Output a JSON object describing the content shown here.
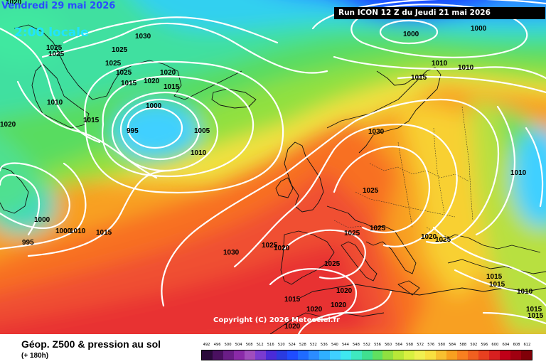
{
  "header": {
    "valid_date": "Vendredi 29 mai 2026",
    "local_time": "2:00 locale",
    "run_info": "Run ICON 12 Z du Jeudi 21 mai 2026"
  },
  "copyright": "Copyright (C) 2026 Meteociel.fr",
  "footer": {
    "title": "Géop. Z500 & pression au sol",
    "subtitle": "(+ 180h)"
  },
  "legend": {
    "labels": [
      "492",
      "496",
      "500",
      "504",
      "508",
      "512",
      "516",
      "520",
      "524",
      "528",
      "532",
      "536",
      "540",
      "544",
      "548",
      "552",
      "556",
      "560",
      "564",
      "568",
      "572",
      "576",
      "580",
      "584",
      "588",
      "592",
      "596",
      "600",
      "604",
      "608",
      "612"
    ],
    "colors": [
      "#2a0a3a",
      "#4a1060",
      "#6a1d87",
      "#8a2aa8",
      "#a04dbd",
      "#7a3bd0",
      "#4a2bd8",
      "#2a3be0",
      "#1f4cff",
      "#1f6bff",
      "#2b8cff",
      "#2fb0ff",
      "#3fd0ff",
      "#3fe8f0",
      "#3fe8c0",
      "#40e090",
      "#60e060",
      "#90e040",
      "#b8e838",
      "#d8f040",
      "#f0f050",
      "#f8e040",
      "#f8c030",
      "#f8a020",
      "#f88020",
      "#f06020",
      "#e84020",
      "#d82020",
      "#c00018",
      "#a00010",
      "#800008"
    ]
  },
  "pressure_labels": {
    "l1000_ne": "1000",
    "l1000_ne2": "1000",
    "l1010_ne": "1010",
    "l1010_ne2": "1010",
    "l1015_ne": "1015",
    "l1030_gr": "1030",
    "l1025_gr": "1025",
    "l1025_gr2": "1025",
    "l1020_gr": "1020",
    "l1025_gr3": "1025",
    "l1025_gr4": "1025",
    "l1020_gr2": "1020",
    "l1010_gr": "1010",
    "l1015_gr": "1015",
    "l1015_gr2": "1015",
    "l1020_w": "1020",
    "l1020_top": "1020",
    "l1000_low": "1000",
    "l995_low": "995",
    "l1005_low": "1005",
    "l1010_low": "1010",
    "l1020_low": "1020",
    "l1000_sw": "1000",
    "l995_sw": "995",
    "l1000_sw2": "1000",
    "l1010_sw": "1010",
    "l1015_sw": "1015",
    "l1030_c": "1030",
    "l1030_uk": "1030",
    "l1025_fr": "1025",
    "l1025_fr2": "1025",
    "l1025_alp": "1025",
    "l1020_sp": "1020",
    "l1025_sp": "1025",
    "l1025_sp2": "1025",
    "l1015_med": "1015",
    "l1020_med": "1020",
    "l1020_med2": "1020",
    "l1020_med3": "1020",
    "l1020_af": "1020",
    "l1015_af": "1015",
    "l1020_ita": "1020",
    "l1025_ita": "1025",
    "l1010_e": "1010",
    "l1015_e": "1015",
    "l1015_e2": "1015",
    "l1010_e2": "1010",
    "l1015_e3": "1015",
    "l1015_e4": "1015"
  }
}
